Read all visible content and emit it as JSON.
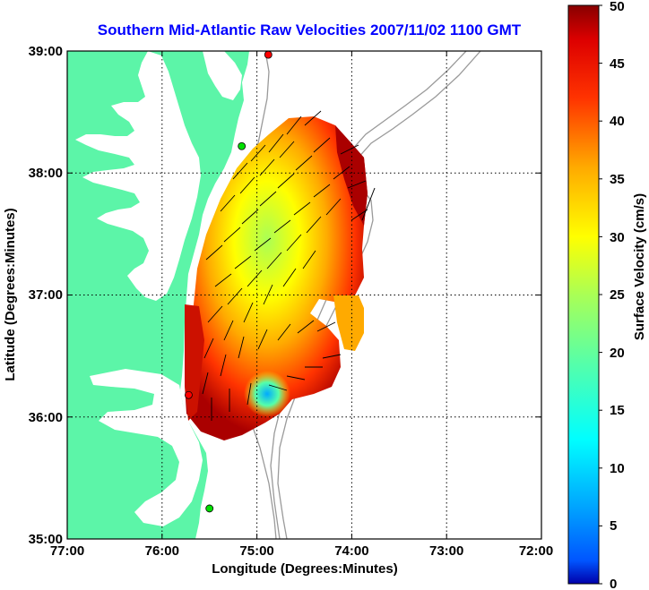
{
  "map": {
    "title": "Southern Mid-Atlantic Raw Velocities 2007/11/02 1100 GMT",
    "x_axis_label": "Longitude (Degrees:Minutes)",
    "y_axis_label": "Latitude (Degrees:Minutes)",
    "x_ticks": [
      "77:00",
      "76:00",
      "75:00",
      "74:00",
      "73:00",
      "72:00"
    ],
    "y_ticks": [
      "39:00",
      "38:00",
      "37:00",
      "36:00",
      "35:00"
    ],
    "lon_range": [
      -77,
      -72
    ],
    "lat_range": [
      35,
      39
    ],
    "grid": "dotted",
    "land_color": "#5cf5a8",
    "water_color": "#ffffff",
    "bathymetry_color": "#9a9a9a"
  },
  "colorbar": {
    "label": "Surface Velocity (cm/s)",
    "ticks": [
      "0",
      "5",
      "10",
      "15",
      "20",
      "25",
      "30",
      "35",
      "40",
      "45",
      "50"
    ],
    "range": [
      0,
      50
    ],
    "colormap": "jet"
  },
  "stations": [
    {
      "lon": -74.88,
      "lat": 38.97,
      "status_color": "#ff0000"
    },
    {
      "lon": -75.16,
      "lat": 38.22,
      "status_color": "#00e000"
    },
    {
      "lon": -75.72,
      "lat": 36.18,
      "status_color": "#ff0000"
    },
    {
      "lon": -75.5,
      "lat": 35.25,
      "status_color": "#00e000"
    }
  ]
}
